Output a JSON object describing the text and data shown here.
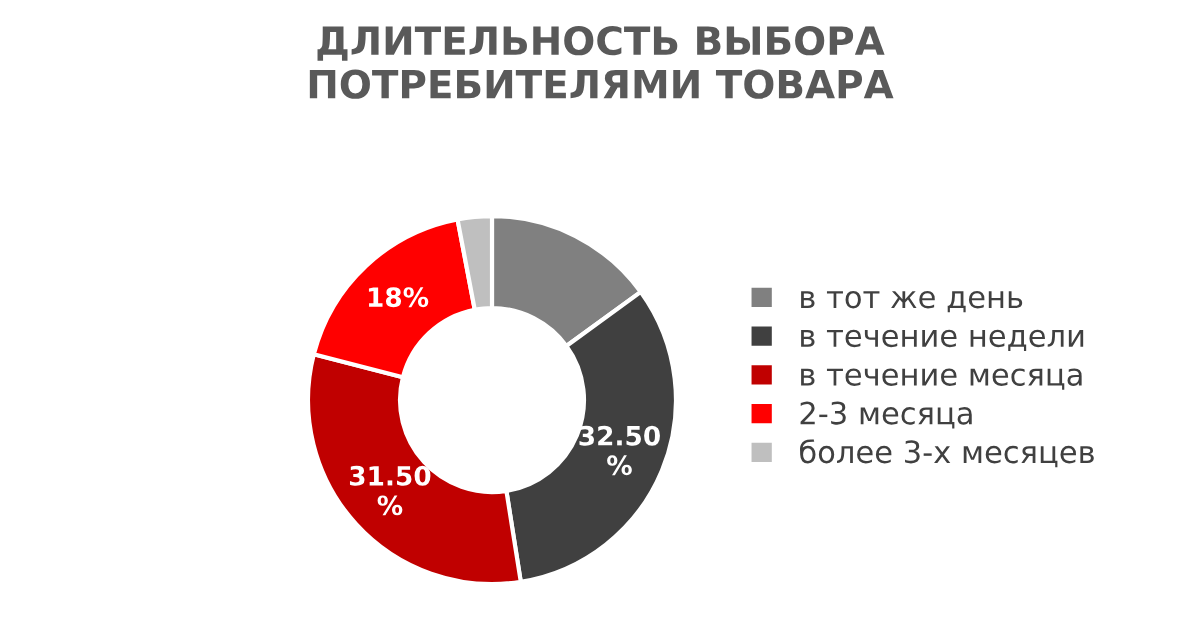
{
  "chart_data": {
    "type": "donut",
    "title": "ДЛИТЕЛЬНОСТЬ ВЫБОРА\nПОТРЕБИТЕЛЯМИ ТОВАРА",
    "categories": [
      "в тот же день",
      "в течение недели",
      "в течение месяца",
      "2-3 месяца",
      "более 3-х месяцев"
    ],
    "values": [
      15,
      32.5,
      31.5,
      18,
      3
    ],
    "colors": [
      "#808080",
      "#404040",
      "#c00000",
      "#ff0000",
      "#bfbfbf"
    ],
    "value_labels": [
      null,
      "32.50\n%",
      "31.50\n%",
      "18%",
      null
    ],
    "legend": "right"
  }
}
